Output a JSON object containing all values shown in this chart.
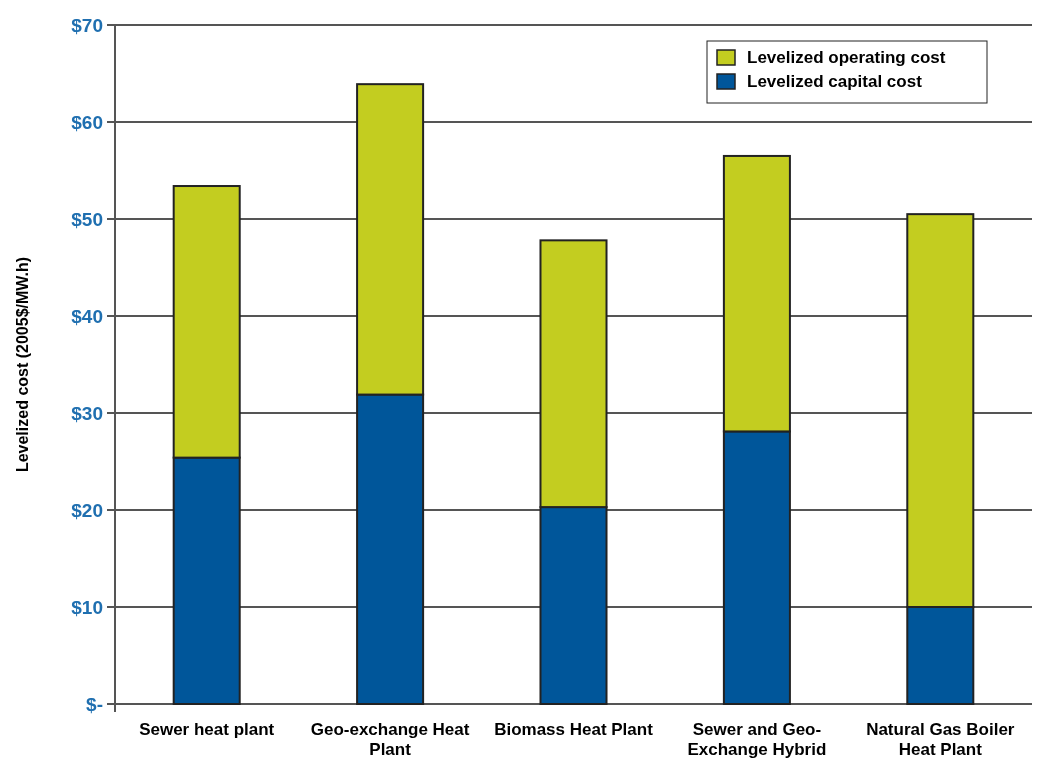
{
  "chart_data": {
    "type": "bar",
    "stacked": true,
    "ylabel": "Levelized cost (2005$/MW.h)",
    "categories": [
      "Sewer heat plant",
      "Geo-exchange Heat Plant",
      "Biomass Heat Plant",
      "Sewer and Geo-Exchange Hybrid",
      "Natural Gas Boiler Heat Plant"
    ],
    "series": [
      {
        "name": "Levelized capital cost",
        "color": "#00569a",
        "values": [
          25.4,
          31.9,
          20.3,
          28.1,
          10.0
        ]
      },
      {
        "name": "Levelized operating cost",
        "color": "#c3cd20",
        "values": [
          28.0,
          32.0,
          27.5,
          28.4,
          40.5
        ]
      }
    ],
    "ylim": [
      0,
      70
    ],
    "yticks": [
      {
        "value": 0,
        "label": "$-"
      },
      {
        "value": 10,
        "label": "$10"
      },
      {
        "value": 20,
        "label": "$20"
      },
      {
        "value": 30,
        "label": "$30"
      },
      {
        "value": 40,
        "label": "$40"
      },
      {
        "value": 50,
        "label": "$50"
      },
      {
        "value": 60,
        "label": "$60"
      },
      {
        "value": 70,
        "label": "$70"
      }
    ],
    "grid": "y",
    "legend": "top right"
  }
}
